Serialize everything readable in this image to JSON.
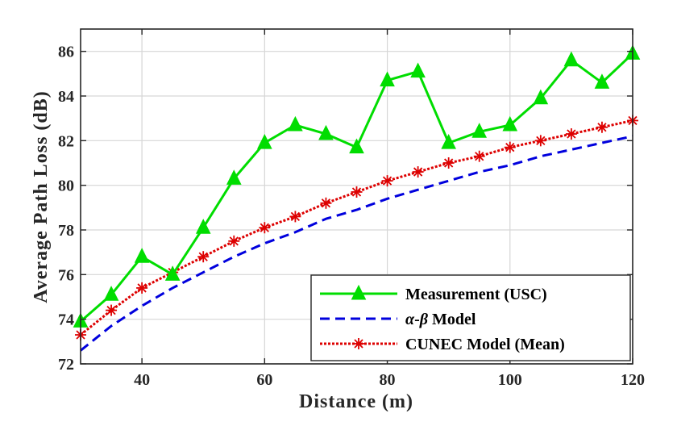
{
  "chart_data": {
    "type": "line",
    "title": "",
    "xlabel": "Distance (m)",
    "ylabel": "Average Path Loss (dB)",
    "xlim": [
      30,
      120
    ],
    "ylim": [
      72,
      87
    ],
    "xticks": [
      40,
      60,
      80,
      100,
      120
    ],
    "yticks": [
      72,
      74,
      76,
      78,
      80,
      82,
      84,
      86
    ],
    "grid": true,
    "legend_position": "bottom-right",
    "series": [
      {
        "name": "Measurement (USC)",
        "label_main": "Measurement (USC)",
        "color": "#00dd00",
        "style": "solid",
        "marker": "triangle",
        "x": [
          30,
          35,
          40,
          45,
          50,
          55,
          60,
          65,
          70,
          75,
          80,
          85,
          90,
          95,
          100,
          105,
          110,
          115,
          120
        ],
        "y": [
          73.9,
          75.1,
          76.8,
          76.0,
          78.1,
          80.3,
          81.9,
          82.7,
          82.3,
          81.7,
          84.7,
          85.1,
          81.9,
          82.4,
          82.7,
          83.9,
          85.6,
          84.6,
          85.9
        ]
      },
      {
        "name": "α-β Model",
        "label_greek_a": "α",
        "label_dash": "-",
        "label_greek_b": "β",
        "label_rest": " Model",
        "color": "#0000dd",
        "style": "dashed",
        "marker": "none",
        "x": [
          30,
          35,
          40,
          45,
          50,
          55,
          60,
          65,
          70,
          75,
          80,
          85,
          90,
          95,
          100,
          105,
          110,
          115,
          120
        ],
        "y": [
          72.6,
          73.7,
          74.6,
          75.4,
          76.1,
          76.8,
          77.4,
          77.9,
          78.5,
          78.9,
          79.4,
          79.8,
          80.2,
          80.6,
          80.9,
          81.3,
          81.6,
          81.9,
          82.2
        ]
      },
      {
        "name": "CUNEC Model (Mean)",
        "label_main": "CUNEC Model (Mean)",
        "color": "#dd0000",
        "style": "dotted",
        "marker": "asterisk",
        "x": [
          30,
          35,
          40,
          45,
          50,
          55,
          60,
          65,
          70,
          75,
          80,
          85,
          90,
          95,
          100,
          105,
          110,
          115,
          120
        ],
        "y": [
          73.3,
          74.4,
          75.4,
          76.1,
          76.8,
          77.5,
          78.1,
          78.6,
          79.2,
          79.7,
          80.2,
          80.6,
          81.0,
          81.3,
          81.7,
          82.0,
          82.3,
          82.6,
          82.9
        ]
      }
    ]
  }
}
